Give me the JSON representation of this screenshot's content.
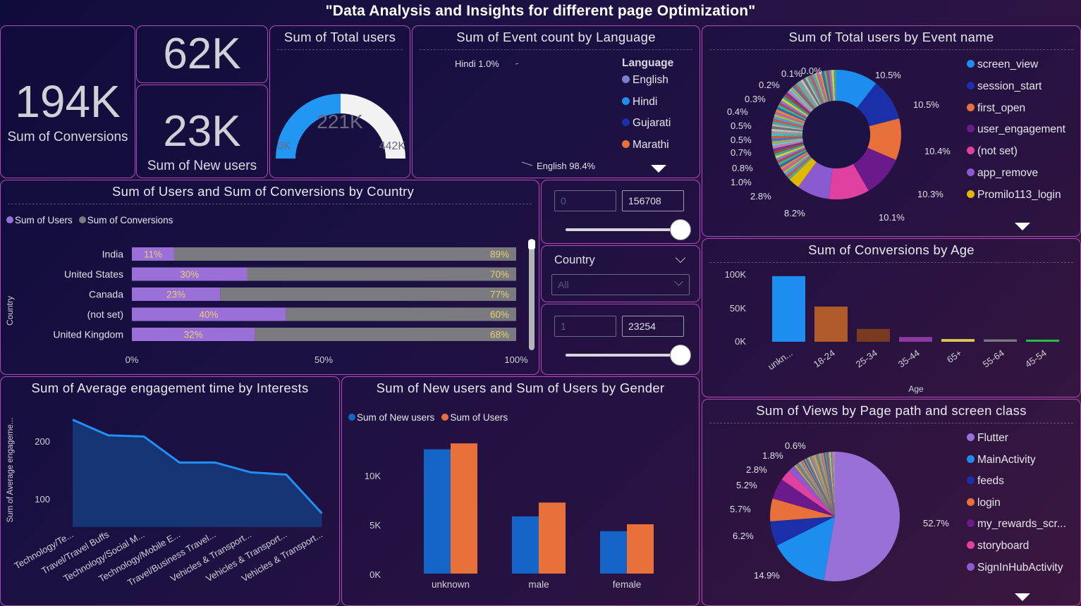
{
  "title": "\"Data Analysis and Insights for different page Optimization\"",
  "kpi": {
    "conversions": {
      "value": "194K",
      "label": "Sum of Conversions"
    },
    "top_value": {
      "value": "62K"
    },
    "new_users": {
      "value": "23K",
      "label": "Sum of New users"
    }
  },
  "gauge": {
    "title": "Sum of Total users",
    "value_label": "221K",
    "min_label": "0K",
    "max_label": "442K",
    "fraction": 0.5,
    "fill_color": "#2196f3",
    "rest_color": "#f2f2f2"
  },
  "language_donut": {
    "title": "Sum of Event count by Language",
    "legend_title": "Language",
    "labels": {
      "hindi": "Hindi 1.0%",
      "english": "English 98.4%"
    },
    "legend": [
      {
        "name": "English",
        "color": "#7b80cc"
      },
      {
        "name": "Hindi",
        "color": "#1d8ef0"
      },
      {
        "name": "Gujarati",
        "color": "#1a2fa8"
      },
      {
        "name": "Marathi",
        "color": "#e8703a"
      }
    ]
  },
  "event_donut": {
    "title": "Sum of Total users by Event name",
    "legend": [
      {
        "name": "screen_view",
        "color": "#1d8ef0"
      },
      {
        "name": "session_start",
        "color": "#1a2fa8"
      },
      {
        "name": "first_open",
        "color": "#e8703a"
      },
      {
        "name": "user_engagement",
        "color": "#6a1a8a"
      },
      {
        "name": "(not set)",
        "color": "#e040a0"
      },
      {
        "name": "app_remove",
        "color": "#8a5ad0"
      },
      {
        "name": "Promilo113_login",
        "color": "#e0b800"
      }
    ],
    "labels": [
      "10.5%",
      "10.5%",
      "10.4%",
      "10.3%",
      "10.1%",
      "8.2%",
      "2.8%",
      "1.0%",
      "0.8%",
      "0.7%",
      "0.5%",
      "0.5%",
      "0.4%",
      "0.3%",
      "0.2%",
      "0.1%",
      "0.0%"
    ]
  },
  "country_chart": {
    "title": "Sum of Users and Sum of Conversions by Country",
    "legend": [
      {
        "name": "Sum of Users",
        "color": "#9a70d8"
      },
      {
        "name": "Sum of Conversions",
        "color": "#7a7a80"
      }
    ],
    "axis_label": "Country",
    "ticks": [
      "0%",
      "50%",
      "100%"
    ]
  },
  "slider1": {
    "min": "0",
    "max": "156708"
  },
  "country_filter": {
    "label": "Country",
    "value": "All"
  },
  "slider2": {
    "min": "1",
    "max": "23254"
  },
  "age_chart": {
    "title": "Sum of Conversions by Age",
    "xlabel": "Age",
    "ticks": [
      "100K",
      "50K",
      "0K"
    ]
  },
  "interest_chart": {
    "title": "Sum of Average engagement time by Interests",
    "ylabel": "Sum of Average engageme...",
    "ticks": [
      "200",
      "100"
    ]
  },
  "gender_chart": {
    "title": "Sum of New users and Sum of Users by Gender",
    "legend": [
      {
        "name": "Sum of New users",
        "color": "#1565c8"
      },
      {
        "name": "Sum of Users",
        "color": "#e8703a"
      }
    ],
    "ticks": [
      "10K",
      "5K",
      "0K"
    ]
  },
  "views_pie": {
    "title": "Sum of Views by Page path and screen class",
    "legend": [
      {
        "name": "Flutter",
        "color": "#9a70d8"
      },
      {
        "name": "MainActivity",
        "color": "#1d8ef0"
      },
      {
        "name": "feeds",
        "color": "#1a2fa8"
      },
      {
        "name": "login",
        "color": "#e8703a"
      },
      {
        "name": "my_rewards_scr...",
        "color": "#6a1a8a"
      },
      {
        "name": "storyboard",
        "color": "#e040a0"
      },
      {
        "name": "SignInHubActivity",
        "color": "#8a5ad0"
      }
    ],
    "labels": [
      "52.7%",
      "14.9%",
      "6.2%",
      "5.7%",
      "5.2%",
      "2.8%",
      "1.8%",
      "0.6%"
    ]
  },
  "chart_data": [
    {
      "type": "bar",
      "title": "Sum of Users and Sum of Conversions by Country",
      "orientation": "horizontal-stacked-100",
      "categories": [
        "India",
        "United States",
        "Canada",
        "(not set)",
        "United Kingdom"
      ],
      "series": [
        {
          "name": "Sum of Users",
          "values": [
            11,
            30,
            23,
            40,
            32
          ]
        },
        {
          "name": "Sum of Conversions",
          "values": [
            89,
            70,
            77,
            60,
            68
          ]
        }
      ],
      "xlim": [
        0,
        100
      ],
      "ylabel": "Country"
    },
    {
      "type": "bar",
      "title": "Sum of Conversions by Age",
      "categories": [
        "unkn...",
        "18-24",
        "25-34",
        "35-44",
        "65+",
        "55-64",
        "45-54"
      ],
      "values": [
        97000,
        52000,
        19000,
        7000,
        4000,
        3500,
        2000
      ],
      "colors": [
        "#1d8ef0",
        "#b05a2a",
        "#7a3a20",
        "#8a3aa0",
        "#e0c850",
        "#7a7a80",
        "#20c040"
      ],
      "ylim": [
        0,
        110000
      ],
      "xlabel": "Age"
    },
    {
      "type": "area",
      "title": "Sum of Average engagement time by Interests",
      "categories": [
        "Technology/Te...",
        "Travel/Travel Buffs",
        "Technology/Social M...",
        "Technology/Mobile E...",
        "Travel/Business Travel...",
        "Vehicles & Transport...",
        "Vehicles & Transport...",
        "Vehicles & Transport..."
      ],
      "values": [
        237,
        210,
        208,
        163,
        163,
        146,
        142,
        75
      ],
      "ylim": [
        40,
        260
      ]
    },
    {
      "type": "bar",
      "title": "Sum of New users and Sum of Users by Gender",
      "categories": [
        "unknown",
        "male",
        "female"
      ],
      "series": [
        {
          "name": "Sum of New users",
          "values": [
            12600,
            5800,
            4300
          ]
        },
        {
          "name": "Sum of Users",
          "values": [
            13200,
            7200,
            5000
          ]
        }
      ],
      "ylim": [
        0,
        14000
      ]
    },
    {
      "type": "pie",
      "title": "Sum of Event count by Language",
      "categories": [
        "English",
        "Hindi",
        "Gujarati",
        "Marathi"
      ],
      "values": [
        98.4,
        1.0,
        0.4,
        0.2
      ]
    },
    {
      "type": "pie",
      "title": "Sum of Total users by Event name",
      "categories": [
        "screen_view",
        "session_start",
        "first_open",
        "user_engagement",
        "(not set)",
        "app_remove",
        "Promilo113_login",
        "other"
      ],
      "values": [
        10.5,
        10.5,
        10.4,
        10.3,
        10.1,
        8.2,
        2.8,
        37.2
      ]
    },
    {
      "type": "pie",
      "title": "Sum of Views by Page path and screen class",
      "categories": [
        "Flutter",
        "MainActivity",
        "feeds",
        "login",
        "my_rewards_scr...",
        "storyboard",
        "SignInHubActivity",
        "other"
      ],
      "values": [
        52.7,
        14.9,
        6.2,
        5.7,
        5.2,
        2.8,
        1.8,
        10.7
      ]
    }
  ]
}
